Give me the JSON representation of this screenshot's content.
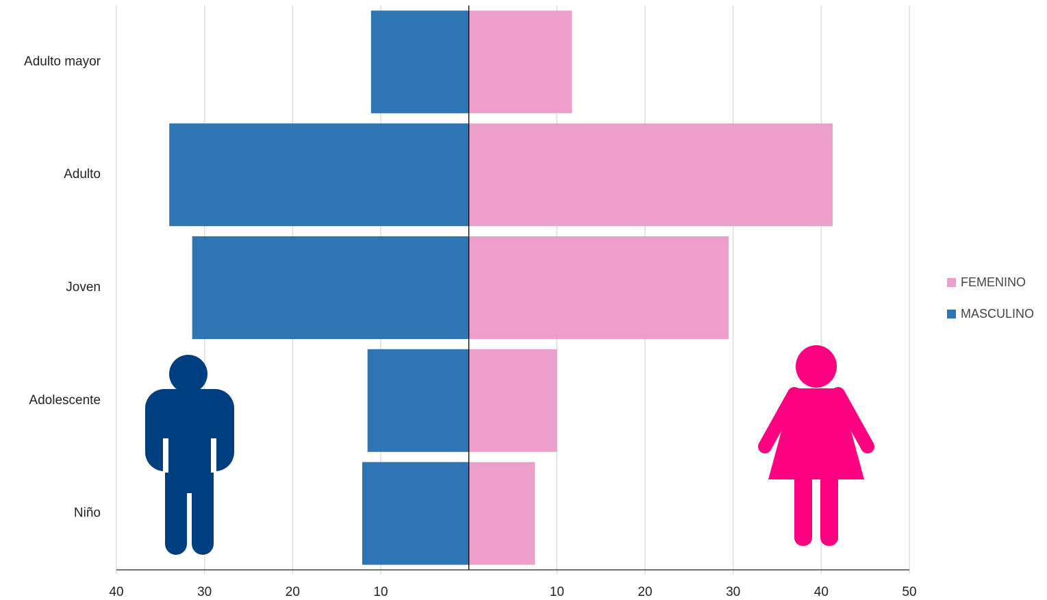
{
  "chart_data": {
    "type": "pyramid",
    "categories": [
      "Adulto mayor",
      "Adulto",
      "Joven",
      "Adolescente",
      "Niño"
    ],
    "series": [
      {
        "name": "FEMENINO",
        "color": "#eb9fca",
        "values": [
          11.7,
          41.3,
          29.5,
          10,
          7.5
        ]
      },
      {
        "name": "MASCULINO",
        "color": "#2e75b6",
        "values": [
          -11.1,
          -34,
          -31.4,
          -11.5,
          -12.1
        ]
      }
    ],
    "xlim": [
      -40,
      50
    ],
    "xticks": [
      {
        "value": -40,
        "label": "40"
      },
      {
        "value": -30,
        "label": "30"
      },
      {
        "value": -20,
        "label": "20"
      },
      {
        "value": -10,
        "label": "10"
      },
      10,
      20,
      30,
      40,
      50
    ],
    "grid": true,
    "legend": "right"
  }
}
